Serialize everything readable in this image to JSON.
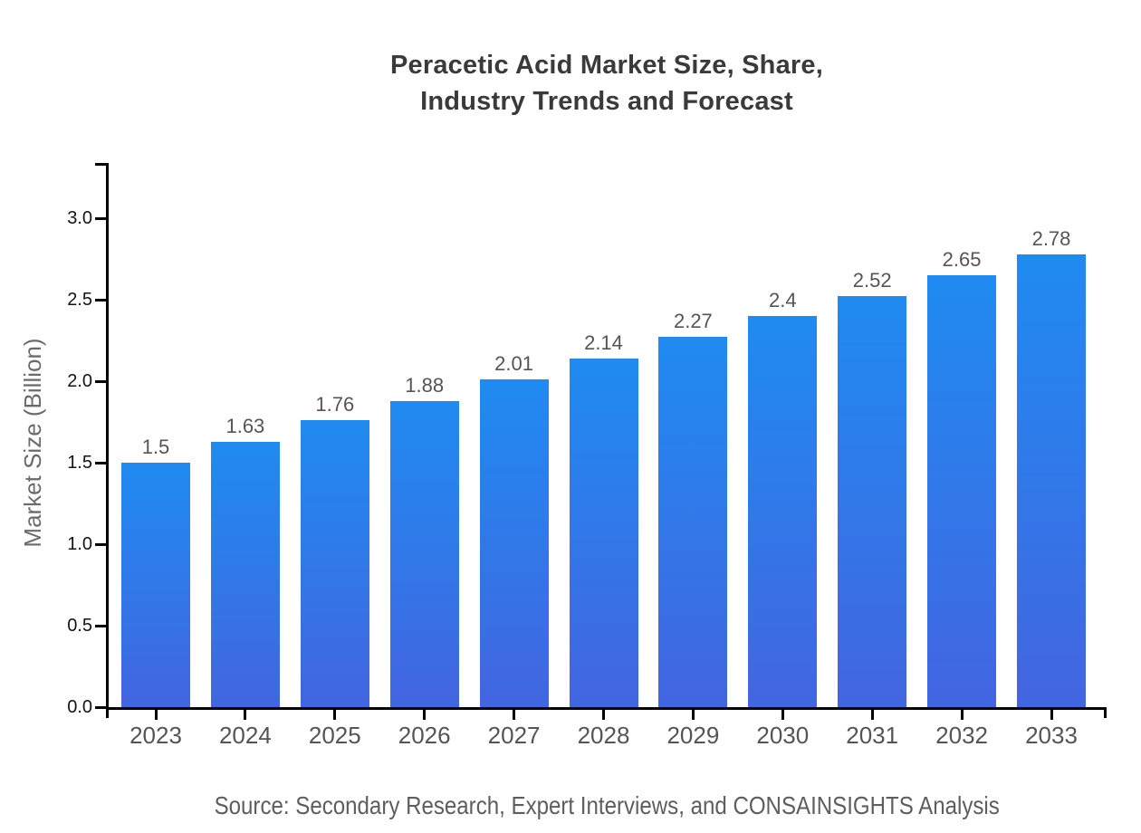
{
  "chart_data": {
    "type": "bar",
    "title_lines": [
      "Peracetic Acid Market Size, Share,",
      "Industry Trends and Forecast"
    ],
    "title": "Peracetic Acid Market Size, Share, Industry Trends and Forecast",
    "xlabel": "",
    "ylabel": "Market Size (Billion)",
    "categories": [
      "2023",
      "2024",
      "2025",
      "2026",
      "2027",
      "2028",
      "2029",
      "2030",
      "2031",
      "2032",
      "2033"
    ],
    "values": [
      1.5,
      1.63,
      1.76,
      1.88,
      2.01,
      2.14,
      2.27,
      2.4,
      2.52,
      2.65,
      2.78
    ],
    "value_labels": [
      "1.5",
      "1.63",
      "1.76",
      "1.88",
      "2.01",
      "2.14",
      "2.27",
      "2.4",
      "2.52",
      "2.65",
      "2.78"
    ],
    "yticks": [
      0.0,
      0.5,
      1.0,
      1.5,
      2.0,
      2.5,
      3.0
    ],
    "ytick_labels": [
      "0.0",
      "0.5",
      "1.0",
      "1.5",
      "2.0",
      "2.5",
      "3.0"
    ],
    "ylim": [
      0,
      3.34
    ],
    "grid": false,
    "legend_position": "none",
    "source_note": "Source: Secondary Research, Expert Interviews, and CONSAINSIGHTS Analysis",
    "colors": {
      "bar_gradient_top": "#1f8bf1",
      "bar_gradient_bottom": "#4365e1",
      "axis": "#000000",
      "ytick_label": "#141414",
      "category_label": "#555555",
      "value_label": "#555555",
      "title": "#3a3a3a",
      "ylabel": "#6b6b6b",
      "source": "#5e5e5e"
    }
  }
}
